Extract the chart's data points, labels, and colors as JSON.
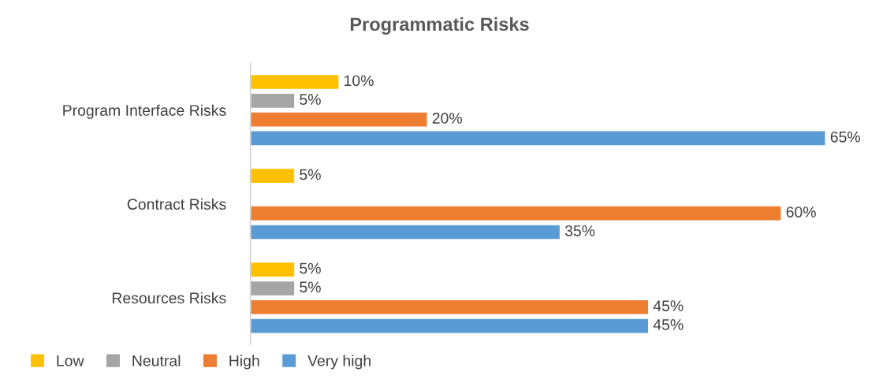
{
  "chart_data": {
    "type": "bar",
    "orientation": "horizontal",
    "title": "Programmatic Risks",
    "categories": [
      "Program Interface Risks",
      "Contract Risks",
      "Resources Risks"
    ],
    "series": [
      {
        "name": "Low",
        "color": "#ffc000",
        "values": [
          10,
          5,
          5
        ],
        "value_labels": [
          "10%",
          "5%",
          "5%"
        ]
      },
      {
        "name": "Neutral",
        "color": "#a5a5a5",
        "values": [
          5,
          null,
          5
        ],
        "value_labels": [
          "5%",
          null,
          "5%"
        ]
      },
      {
        "name": "High",
        "color": "#ed7d31",
        "values": [
          20,
          60,
          45
        ],
        "value_labels": [
          "20%",
          "60%",
          "45%"
        ]
      },
      {
        "name": "Very high",
        "color": "#5b9bd5",
        "values": [
          65,
          35,
          45
        ],
        "value_labels": [
          "65%",
          "35%",
          "45%"
        ]
      }
    ],
    "legend": "bottom left",
    "grid": false
  }
}
